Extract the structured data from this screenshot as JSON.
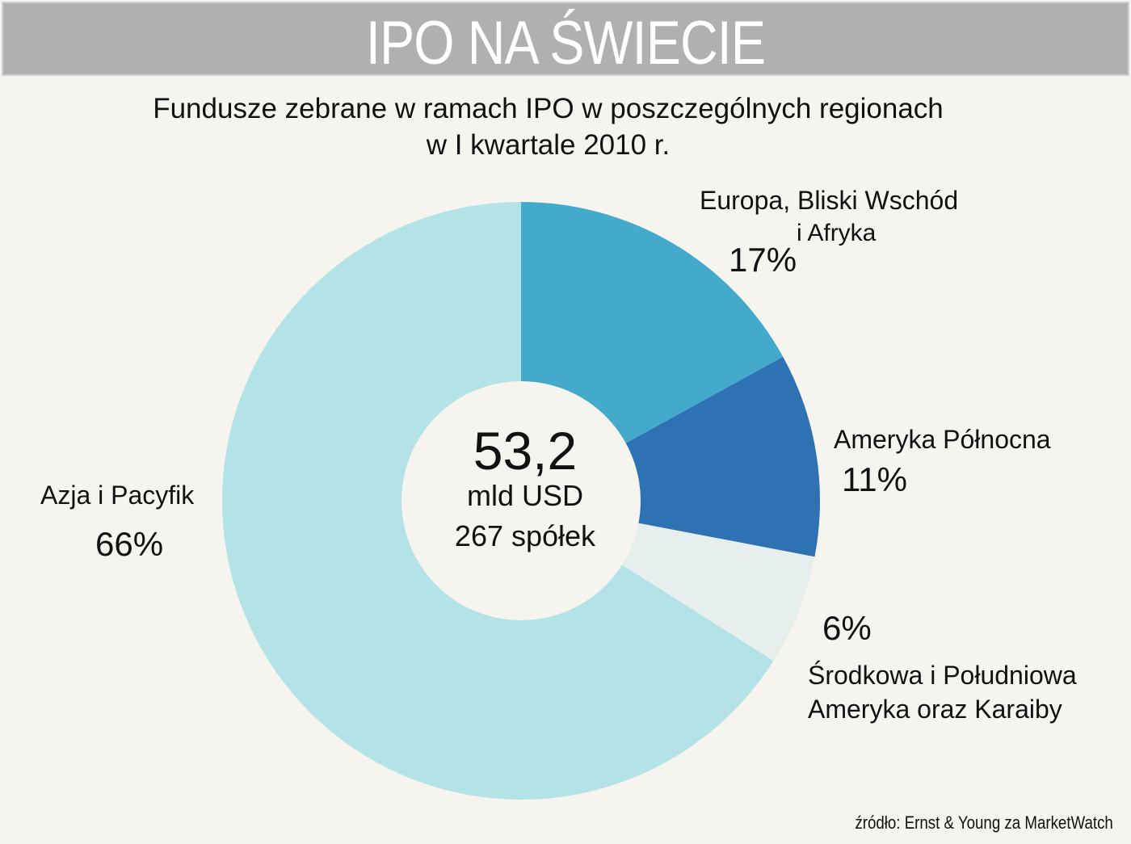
{
  "header": {
    "title": "IPO NA ŚWIECIE"
  },
  "chart_data": {
    "type": "pie",
    "variant": "donut",
    "title_line1": "Fundusze zebrane w ramach IPO w poszczególnych regionach",
    "title_line2": "w I kwartale 2010 r.",
    "center": {
      "value": "53,2",
      "unit": "mld USD",
      "count": "267 spółek"
    },
    "slices": [
      {
        "label_line1": "Europa, Bliski Wschód",
        "label_line2": "i Afryka",
        "value": 17,
        "pct": "17%",
        "color": "#44aacc"
      },
      {
        "label_line1": "Ameryka Północna",
        "label_line2": "",
        "value": 11,
        "pct": "11%",
        "color": "#2e72b4"
      },
      {
        "label_line1": "Środkowa i Południowa",
        "label_line2": "Ameryka oraz Karaiby",
        "value": 6,
        "pct": "6%",
        "color": "#e6eeee"
      },
      {
        "label_line1": "Azja i Pacyfik",
        "label_line2": "",
        "value": 66,
        "pct": "66%",
        "color": "#b3e3e6"
      }
    ]
  },
  "source": "źródło: Ernst & Young za MarketWatch"
}
